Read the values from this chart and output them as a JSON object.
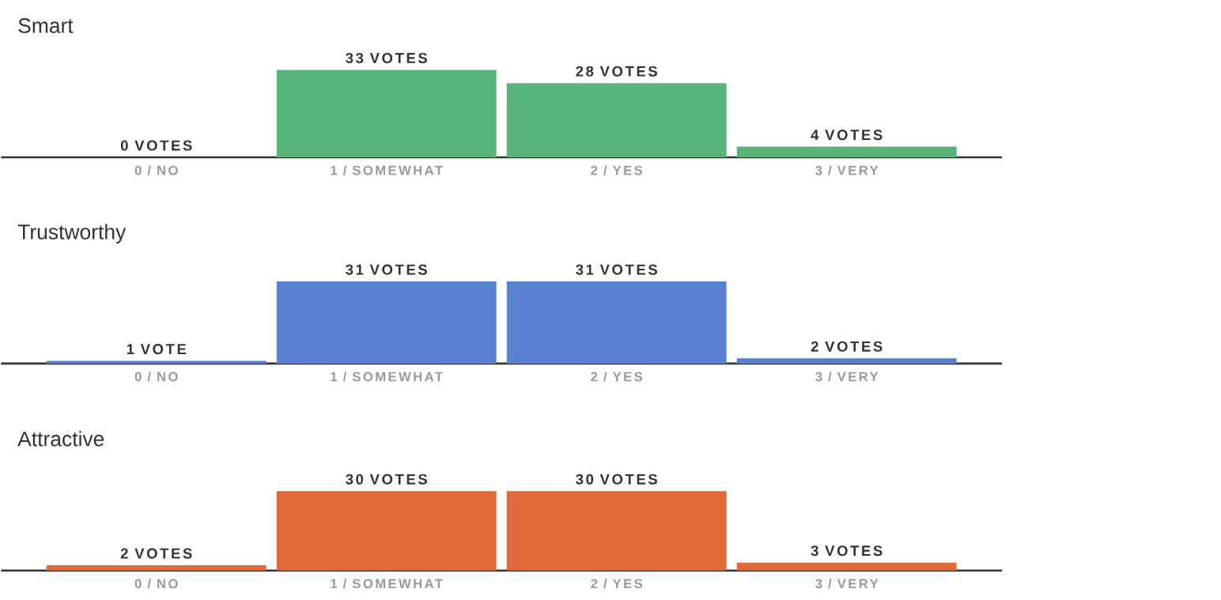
{
  "chart_data": [
    {
      "type": "bar",
      "title": "Smart",
      "categories": [
        "0 / NO",
        "1 / SOMEWHAT",
        "2 / YES",
        "3 / VERY"
      ],
      "values": [
        0,
        33,
        28,
        4
      ],
      "value_labels": [
        "0 VOTES",
        "33 VOTES",
        "28 VOTES",
        "4 VOTES"
      ],
      "color": "#57b378"
    },
    {
      "type": "bar",
      "title": "Trustworthy",
      "categories": [
        "0 / NO",
        "1 / SOMEWHAT",
        "2 / YES",
        "3 / VERY"
      ],
      "values": [
        1,
        31,
        31,
        2
      ],
      "value_labels": [
        "1 VOTE",
        "31 VOTES",
        "31 VOTES",
        "2 VOTES"
      ],
      "color": "#5a80d2"
    },
    {
      "type": "bar",
      "title": "Attractive",
      "categories": [
        "0 / NO",
        "1 / SOMEWHAT",
        "2 / YES",
        "3 / VERY"
      ],
      "values": [
        2,
        30,
        30,
        3
      ],
      "value_labels": [
        "2 VOTES",
        "30 VOTES",
        "30 VOTES",
        "3 VOTES"
      ],
      "color": "#e06a3a"
    }
  ]
}
